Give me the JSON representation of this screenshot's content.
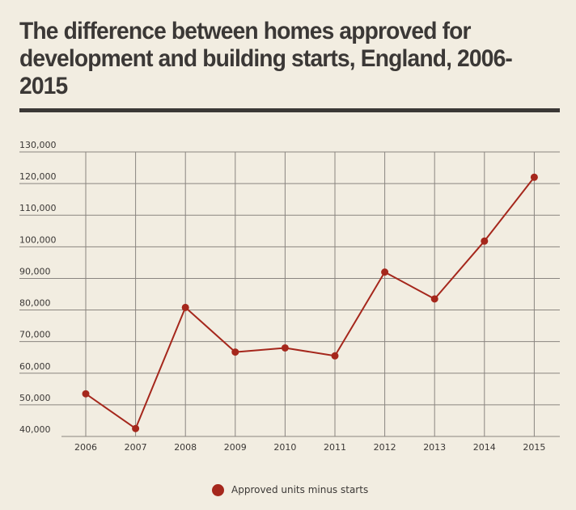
{
  "chart_data": {
    "type": "line",
    "title": "The difference between homes approved for development and building starts, England, 2006-2015",
    "xlabel": "",
    "ylabel": "",
    "categories": [
      "2006",
      "2007",
      "2008",
      "2009",
      "2010",
      "2011",
      "2012",
      "2013",
      "2014",
      "2015"
    ],
    "series": [
      {
        "name": "Approved units minus starts",
        "values": [
          53500,
          42500,
          80800,
          66700,
          68000,
          65500,
          92000,
          83500,
          101800,
          122000
        ],
        "color": "#a5271c"
      }
    ],
    "ylim": [
      40000,
      130000
    ],
    "yticks": [
      {
        "value": 40000,
        "label": "40,000"
      },
      {
        "value": 50000,
        "label": "50,000"
      },
      {
        "value": 60000,
        "label": "60,000"
      },
      {
        "value": 70000,
        "label": "70,000"
      },
      {
        "value": 80000,
        "label": "80,000"
      },
      {
        "value": 90000,
        "label": "90,000"
      },
      {
        "value": 100000,
        "label": "100,000"
      },
      {
        "value": 110000,
        "label": "110,000"
      },
      {
        "value": 120000,
        "label": "120,000"
      },
      {
        "value": 130000,
        "label": "130,000"
      }
    ],
    "grid": true,
    "legend_position": "bottom-center"
  },
  "colors": {
    "background": "#f2ede1",
    "text": "#3b3836",
    "grid": "#8a8580"
  }
}
